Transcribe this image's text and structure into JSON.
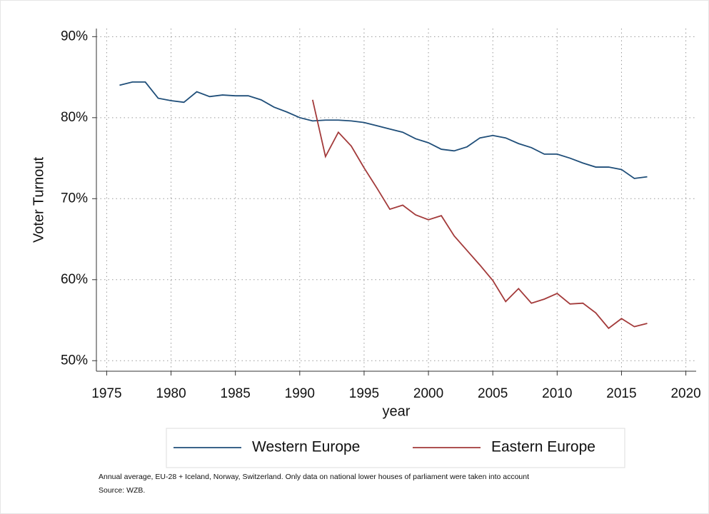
{
  "chart_data": {
    "type": "line",
    "y_label": "Voter Turnout",
    "x_label": "year",
    "x": [
      1976,
      1977,
      1978,
      1979,
      1980,
      1981,
      1982,
      1983,
      1984,
      1985,
      1986,
      1987,
      1988,
      1989,
      1990,
      1991,
      1992,
      1993,
      1994,
      1995,
      1996,
      1997,
      1998,
      1999,
      2000,
      2001,
      2002,
      2003,
      2004,
      2005,
      2006,
      2007,
      2008,
      2009,
      2010,
      2011,
      2012,
      2013,
      2014,
      2015,
      2016,
      2017
    ],
    "series": [
      {
        "name": "Western Europe",
        "color": "#1f4e79",
        "values": [
          84.0,
          84.4,
          84.4,
          82.4,
          82.1,
          81.9,
          83.2,
          82.6,
          82.8,
          82.7,
          82.7,
          82.2,
          81.3,
          80.7,
          80.0,
          79.6,
          79.7,
          79.7,
          79.6,
          79.4,
          79.0,
          78.6,
          78.2,
          77.4,
          76.9,
          76.1,
          75.9,
          76.4,
          77.5,
          77.8,
          77.5,
          76.8,
          76.3,
          75.5,
          75.5,
          75.0,
          74.4,
          73.9,
          73.9,
          73.6,
          72.5,
          72.7
        ]
      },
      {
        "name": "Eastern Europe",
        "color": "#a33a3a",
        "values": [
          null,
          null,
          null,
          null,
          null,
          null,
          null,
          null,
          null,
          null,
          null,
          null,
          null,
          null,
          null,
          82.2,
          75.2,
          78.2,
          76.5,
          73.8,
          71.3,
          68.7,
          69.2,
          68.0,
          67.4,
          67.9,
          65.4,
          63.6,
          61.8,
          59.9,
          57.3,
          58.9,
          57.1,
          57.6,
          58.3,
          57.0,
          57.1,
          55.9,
          54.0,
          55.2,
          54.2,
          54.6
        ]
      }
    ],
    "xlim": [
      1974.2,
      2020.8
    ],
    "xticks": [
      1975,
      1980,
      1985,
      1990,
      1995,
      2000,
      2005,
      2010,
      2015,
      2020
    ],
    "ylim": [
      48.7,
      91
    ],
    "yticks": [
      {
        "value": 50,
        "label": "50%"
      },
      {
        "value": 60,
        "label": "60%"
      },
      {
        "value": 70,
        "label": "70%"
      },
      {
        "value": 80,
        "label": "80%"
      },
      {
        "value": 90,
        "label": "90%"
      }
    ],
    "grid": true,
    "notes": [
      "Annual average, EU-28 + Iceland, Norway, Switzerland. Only data on national lower houses of parliament were taken into account",
      "Source: WZB."
    ]
  }
}
